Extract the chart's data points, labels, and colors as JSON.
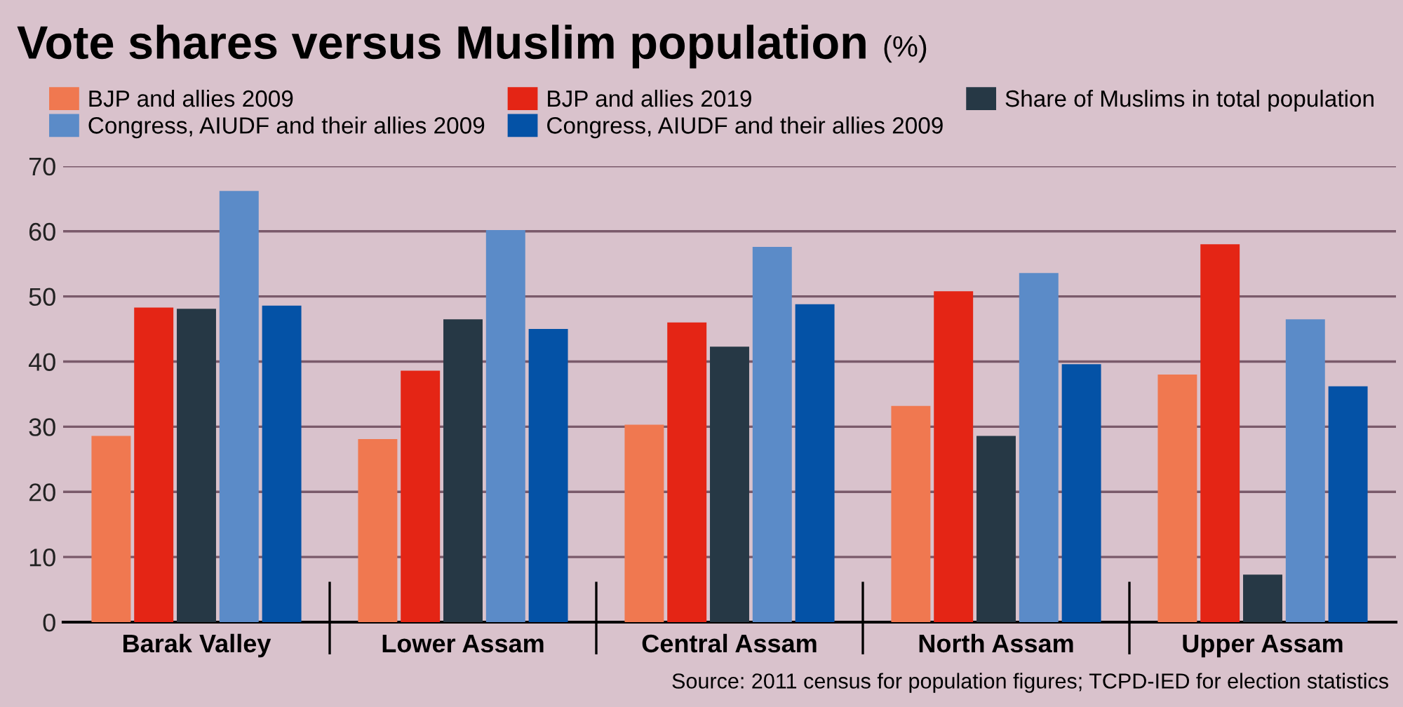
{
  "chart_data": {
    "type": "bar",
    "title": "Vote shares versus Muslim population",
    "ylabel": "(%)",
    "categories": [
      "Barak Valley",
      "Lower Assam",
      "Central Assam",
      "North Assam",
      "Upper Assam"
    ],
    "series": [
      {
        "name": "BJP and allies 2009",
        "color": "#f07850",
        "values": [
          28.6,
          28.1,
          30.3,
          33.2,
          38.0
        ]
      },
      {
        "name": "BJP and allies 2019",
        "color": "#e42515",
        "values": [
          48.3,
          38.6,
          46.0,
          50.8,
          58.0
        ]
      },
      {
        "name": "Share of Muslims in total population",
        "color": "#263845",
        "values": [
          48.1,
          46.5,
          42.3,
          28.6,
          7.3
        ]
      },
      {
        "name": "Congress, AIUDF and their allies 2009",
        "color": "#5b8bc8",
        "values": [
          66.2,
          60.2,
          57.6,
          53.6,
          46.5
        ]
      },
      {
        "name": "Congress, AIUDF and their allies 2009",
        "color": "#0452a6",
        "values": [
          48.6,
          45.0,
          48.8,
          39.6,
          36.2
        ]
      }
    ],
    "ylim": [
      0,
      70
    ],
    "yticks": [
      0,
      10,
      20,
      30,
      40,
      50,
      60,
      70
    ],
    "grid": "y",
    "legend": "top right",
    "annotations": [
      "Source: 2011 census for population figures; TCPD-IED for election statistics"
    ]
  }
}
